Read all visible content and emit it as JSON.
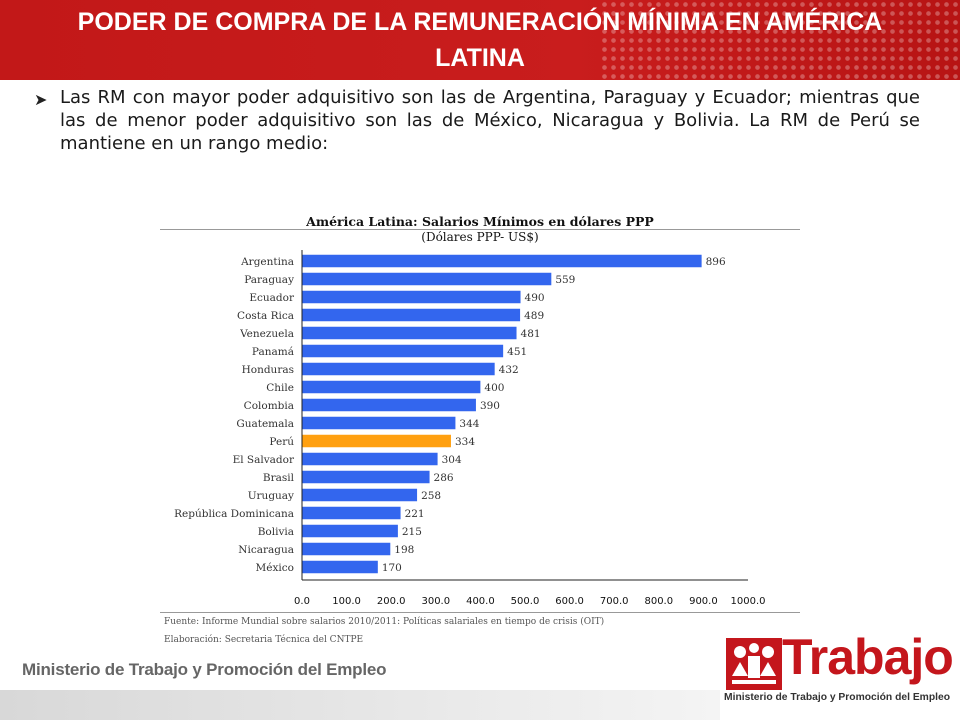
{
  "header": {
    "title": "PODER DE COMPRA DE LA REMUNERACIÓN MÍNIMA EN AMÉRICA LATINA"
  },
  "bullet": {
    "icon": "arrow-bullet-icon",
    "text": "Las RM con mayor poder adquisitivo son las de Argentina, Paraguay y Ecuador; mientras que las de menor poder adquisitivo son las de México, Nicaragua y Bolivia. La RM de Perú se mantiene en un rango medio:"
  },
  "chart_data": {
    "type": "bar",
    "orientation": "horizontal",
    "title": "América Latina: Salarios Mínimos en dólares PPP",
    "subtitle": "(Dólares PPP- US$)",
    "categories": [
      "Argentina",
      "Paraguay",
      "Ecuador",
      "Costa Rica",
      "Venezuela",
      "Panamá",
      "Honduras",
      "Chile",
      "Colombia",
      "Guatemala",
      "Perú",
      "El Salvador",
      "Brasil",
      "Uruguay",
      "República Dominicana",
      "Bolivia",
      "Nicaragua",
      "México"
    ],
    "values": [
      896,
      559,
      490,
      489,
      481,
      451,
      432,
      400,
      390,
      344,
      334,
      304,
      286,
      258,
      221,
      215,
      198,
      170
    ],
    "data_labels": [
      "896",
      "559",
      "490",
      "489",
      "481",
      "451",
      "432",
      "400",
      "390",
      "344",
      "334",
      "304",
      "286",
      "258",
      "221",
      "215",
      "198",
      "170"
    ],
    "highlight_category": "Perú",
    "xlim": [
      0,
      1000
    ],
    "xticks": [
      "0.0",
      "100.0",
      "200.0",
      "300.0",
      "400.0",
      "500.0",
      "600.0",
      "700.0",
      "800.0",
      "900.0",
      "1000.0"
    ],
    "grid": false,
    "colors": {
      "bar": "#3366ee",
      "highlight": "#ffa010"
    }
  },
  "footer": {
    "source": "Fuente: Informe Mundial sobre salarios 2010/2011: Políticas salariales en tiempo de crisis (OIT)",
    "elaboration": "Elaboración: Secretaria Técnica del CNTPE"
  },
  "branding": {
    "ministry": "Ministerio de Trabajo y Promoción del Empleo",
    "logo_word": "Trabajo",
    "logo_sub": "Ministerio de Trabajo y Promoción del Empleo",
    "logo_icon": "people-logo-icon",
    "accent_color": "#c4161c"
  }
}
